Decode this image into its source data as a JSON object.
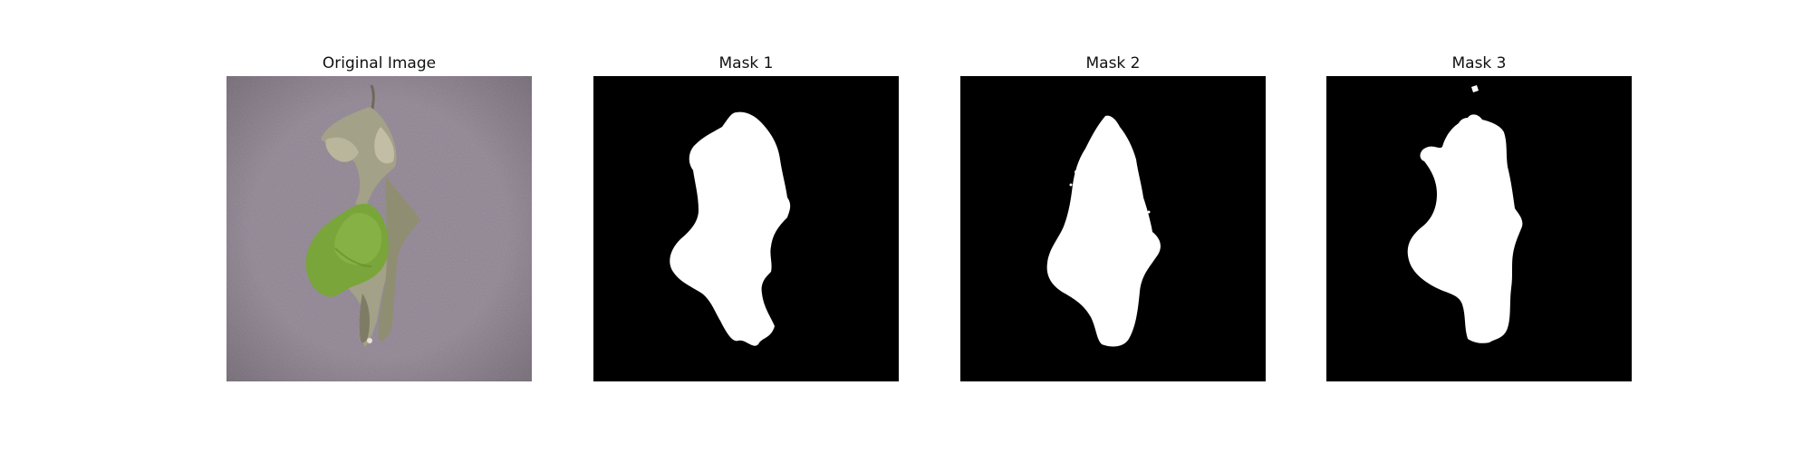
{
  "figure": {
    "panels": [
      {
        "title": "Original Image",
        "kind": "photo"
      },
      {
        "title": "Mask 1",
        "kind": "mask"
      },
      {
        "title": "Mask 2",
        "kind": "mask"
      },
      {
        "title": "Mask 3",
        "kind": "mask"
      }
    ]
  },
  "colors": {
    "background_photo": "#8a7f8c",
    "leaf_green": "#7fa83c",
    "leaf_dry": "#a9a58a",
    "mask_bg": "#000000",
    "mask_fg": "#ffffff"
  },
  "icons": {
    "subject": "leaf-icon"
  }
}
